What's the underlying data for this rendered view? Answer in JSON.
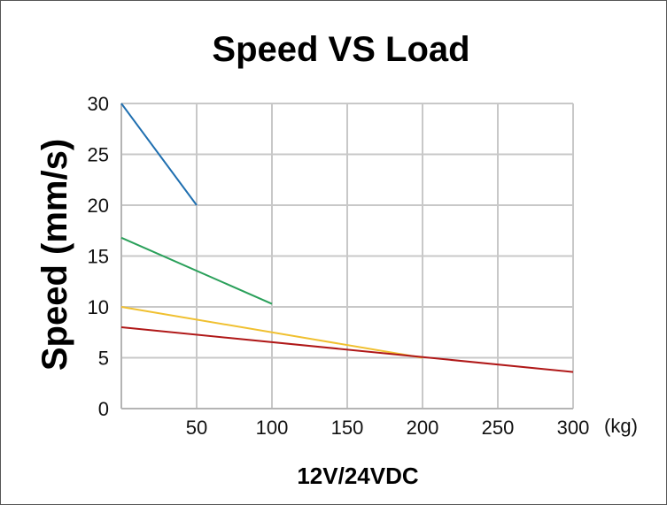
{
  "chart_data": {
    "type": "line",
    "title": "Speed VS Load",
    "ylabel": "Speed (mm/s)",
    "subtitle": "12V/24VDC",
    "xunit": "(kg)",
    "xlim": [
      0,
      300
    ],
    "ylim": [
      0,
      30
    ],
    "xticks": [
      50,
      100,
      150,
      200,
      250,
      300
    ],
    "yticks": [
      0,
      5,
      10,
      15,
      20,
      25,
      30
    ],
    "grid": true,
    "series": [
      {
        "name": "blue",
        "color": "#1f6fb0",
        "x": [
          0,
          50
        ],
        "y": [
          30,
          20
        ]
      },
      {
        "name": "green",
        "color": "#2aa05a",
        "x": [
          0,
          100
        ],
        "y": [
          16.8,
          10.3
        ]
      },
      {
        "name": "yellow",
        "color": "#f0c030",
        "x": [
          0,
          200
        ],
        "y": [
          10,
          5
        ]
      },
      {
        "name": "red",
        "color": "#b01818",
        "x": [
          0,
          300
        ],
        "y": [
          8,
          3.6
        ]
      }
    ]
  }
}
